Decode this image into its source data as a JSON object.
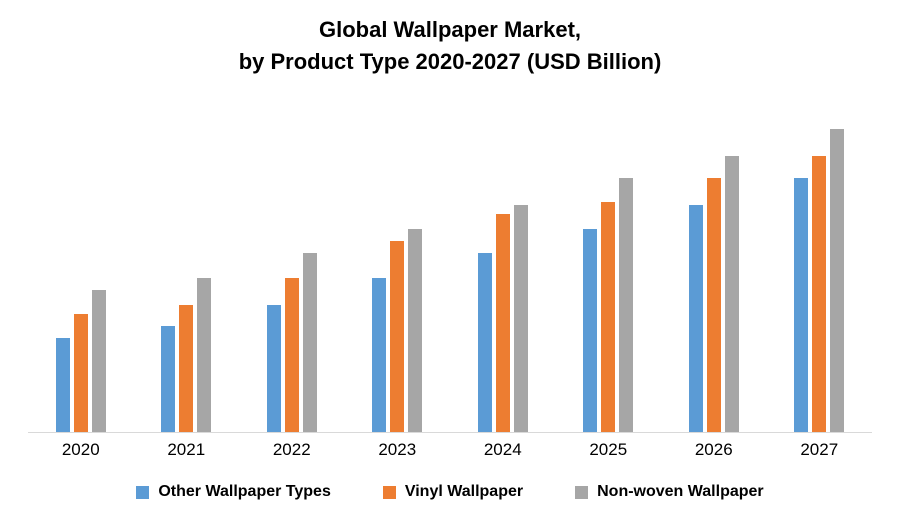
{
  "title": {
    "line1": "Global Wallpaper Market,",
    "line2": "by Product Type 2020-2027 (USD Billion)"
  },
  "chart_data": {
    "type": "bar",
    "title": "Global Wallpaper Market, by Product Type 2020-2027 (USD Billion)",
    "categories": [
      "2020",
      "2021",
      "2022",
      "2023",
      "2024",
      "2025",
      "2026",
      "2027"
    ],
    "series": [
      {
        "name": "Other Wallpaper Types",
        "color": "#5B9BD5",
        "values": [
          31,
          35,
          42,
          51,
          59,
          67,
          75,
          84
        ]
      },
      {
        "name": "Vinyl Wallpaper",
        "color": "#ED7D31",
        "values": [
          39,
          42,
          51,
          63,
          72,
          76,
          84,
          91
        ]
      },
      {
        "name": "Non-woven Wallpaper",
        "color": "#A6A6A6",
        "values": [
          47,
          51,
          59,
          67,
          75,
          84,
          91,
          100
        ]
      }
    ],
    "xlabel": "",
    "ylabel": "",
    "ylim": [
      0,
      105
    ],
    "grid": false,
    "axis_line_color": "#d9d9d9",
    "legend_position": "bottom",
    "value_unit": "relative (no y-axis shown in source image)"
  }
}
